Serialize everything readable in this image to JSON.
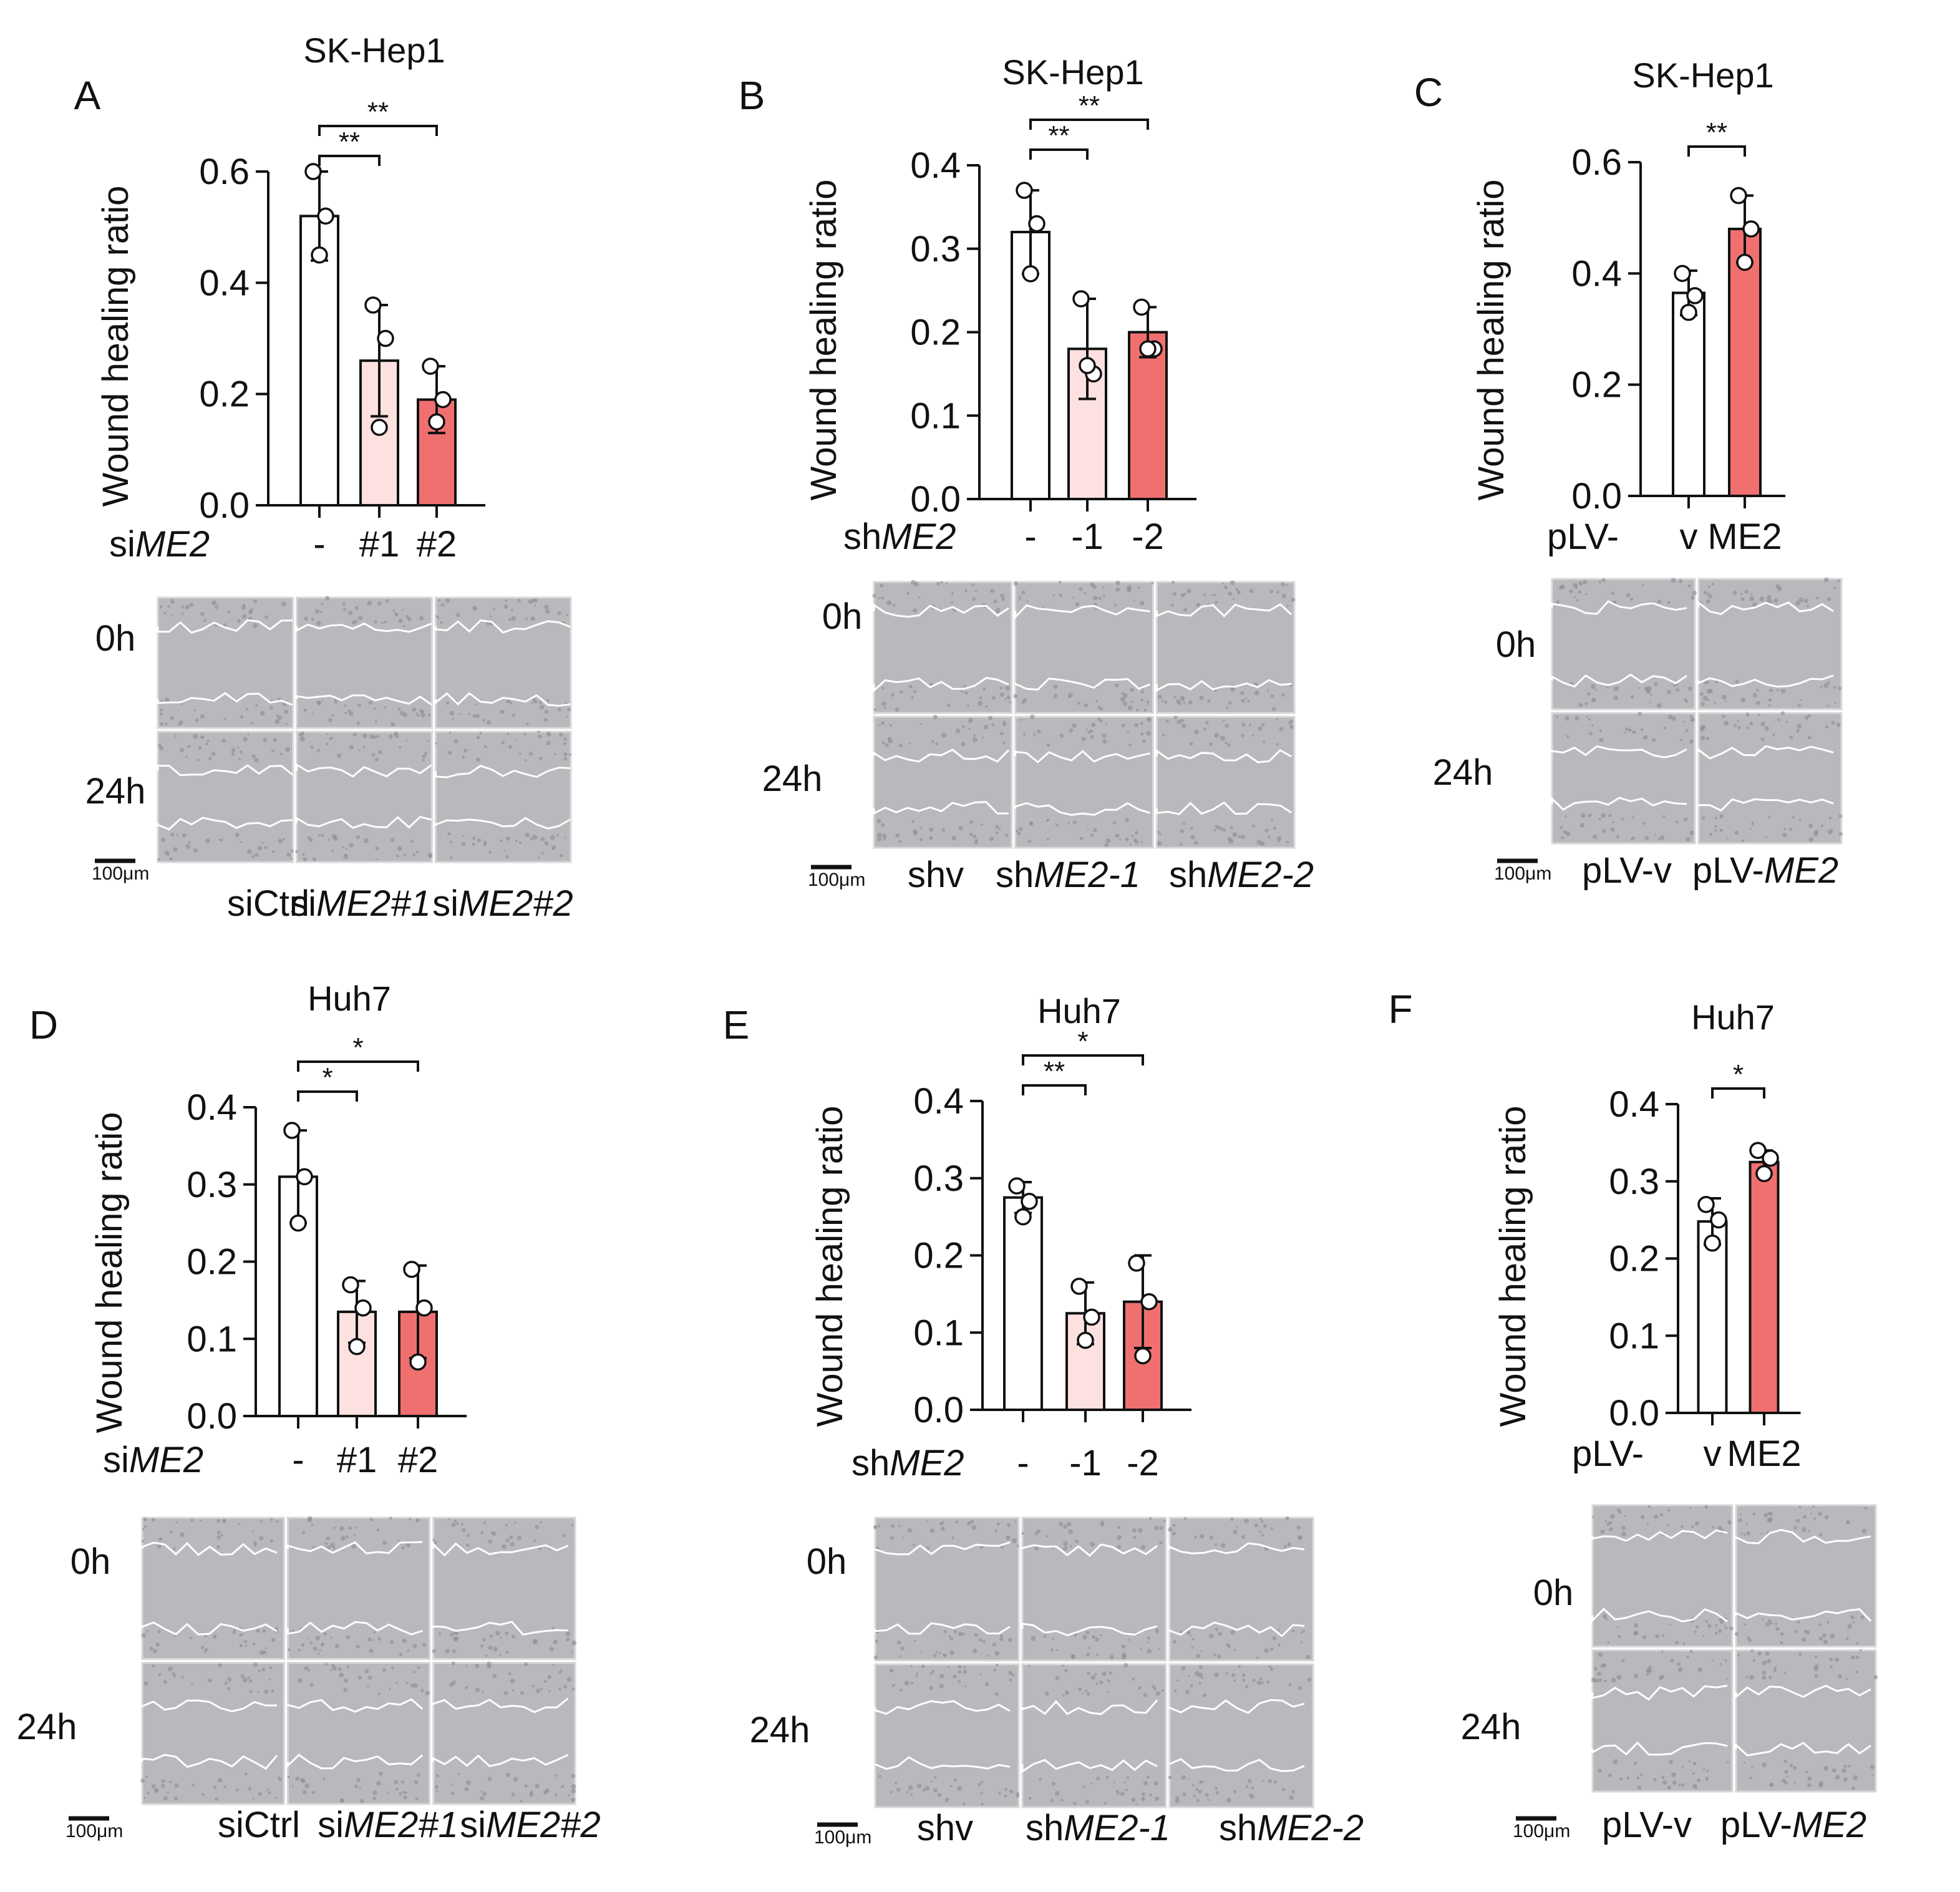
{
  "figure": {
    "colors": {
      "bar_ctrl": "#ffffff",
      "bar_light": "#fde0e0",
      "bar_dark": "#f07070",
      "bar_stroke": "#111111",
      "scratch_bg": "#b9b9bd",
      "scratch_line": "#ffffff"
    },
    "scale_bar_label": "100μm",
    "time_labels": [
      "0h",
      "24h"
    ]
  },
  "chart_data": [
    {
      "panel": "A",
      "type": "bar",
      "title": "SK-Hep1",
      "ylabel": "Wound healing ratio",
      "ylim": [
        0,
        0.6
      ],
      "yticks": [
        "0.0",
        "0.2",
        "0.4",
        "0.6"
      ],
      "group_prefix": "si",
      "group_gene": "ME2",
      "categories": [
        "-",
        "#1",
        "#2"
      ],
      "values": [
        0.52,
        0.26,
        0.19
      ],
      "errors": [
        0.08,
        0.1,
        0.06
      ],
      "points": [
        [
          0.6,
          0.52,
          0.45
        ],
        [
          0.36,
          0.3,
          0.14
        ],
        [
          0.25,
          0.19,
          0.15
        ]
      ],
      "fills": [
        "ctrl",
        "light",
        "dark"
      ],
      "significance": [
        {
          "from": 0,
          "to": 1,
          "label": "**"
        },
        {
          "from": 0,
          "to": 2,
          "label": "**"
        }
      ],
      "image_labels": [
        {
          "prefix": "siCtrl",
          "gene": "",
          "suffix": ""
        },
        {
          "prefix": "si",
          "gene": "ME2#1",
          "suffix": ""
        },
        {
          "prefix": "si",
          "gene": "ME2#2",
          "suffix": ""
        }
      ]
    },
    {
      "panel": "B",
      "type": "bar",
      "title": "SK-Hep1",
      "ylabel": "Wound healing ratio",
      "ylim": [
        0,
        0.4
      ],
      "yticks": [
        "0.0",
        "0.1",
        "0.2",
        "0.3",
        "0.4"
      ],
      "group_prefix": "sh",
      "group_gene": "ME2",
      "categories": [
        "-",
        "-1",
        "-2"
      ],
      "values": [
        0.32,
        0.18,
        0.2
      ],
      "errors": [
        0.05,
        0.06,
        0.03
      ],
      "points": [
        [
          0.37,
          0.33,
          0.27
        ],
        [
          0.24,
          0.15,
          0.16
        ],
        [
          0.23,
          0.18,
          0.18
        ]
      ],
      "fills": [
        "ctrl",
        "light",
        "dark"
      ],
      "significance": [
        {
          "from": 0,
          "to": 1,
          "label": "**"
        },
        {
          "from": 0,
          "to": 2,
          "label": "**"
        }
      ],
      "image_labels": [
        {
          "prefix": "shv",
          "gene": "",
          "suffix": ""
        },
        {
          "prefix": "sh",
          "gene": "ME2-1",
          "suffix": ""
        },
        {
          "prefix": "sh",
          "gene": "ME2-2",
          "suffix": ""
        }
      ]
    },
    {
      "panel": "C",
      "type": "bar",
      "title": "SK-Hep1",
      "ylabel": "Wound healing ratio",
      "ylim": [
        0,
        0.6
      ],
      "yticks": [
        "0.0",
        "0.2",
        "0.4",
        "0.6"
      ],
      "group_prefix": "pLV-",
      "group_gene": "",
      "categories": [
        "v",
        "ME2"
      ],
      "values": [
        0.365,
        0.48
      ],
      "errors": [
        0.04,
        0.06
      ],
      "points": [
        [
          0.4,
          0.36,
          0.33
        ],
        [
          0.54,
          0.48,
          0.42
        ]
      ],
      "fills": [
        "ctrl",
        "dark"
      ],
      "significance": [
        {
          "from": 0,
          "to": 1,
          "label": "**"
        }
      ],
      "image_labels": [
        {
          "prefix": "pLV-v",
          "gene": "",
          "suffix": ""
        },
        {
          "prefix": "pLV-",
          "gene": "ME2",
          "suffix": ""
        }
      ]
    },
    {
      "panel": "D",
      "type": "bar",
      "title": "Huh7",
      "ylabel": "Wound healing ratio",
      "ylim": [
        0,
        0.4
      ],
      "yticks": [
        "0.0",
        "0.1",
        "0.2",
        "0.3",
        "0.4"
      ],
      "group_prefix": "si",
      "group_gene": "ME2",
      "categories": [
        "-",
        "#1",
        "#2"
      ],
      "values": [
        0.31,
        0.135,
        0.135
      ],
      "errors": [
        0.06,
        0.04,
        0.06
      ],
      "points": [
        [
          0.37,
          0.31,
          0.25
        ],
        [
          0.17,
          0.14,
          0.09
        ],
        [
          0.19,
          0.14,
          0.07
        ]
      ],
      "fills": [
        "ctrl",
        "light",
        "dark"
      ],
      "significance": [
        {
          "from": 0,
          "to": 1,
          "label": "*"
        },
        {
          "from": 0,
          "to": 2,
          "label": "*"
        }
      ],
      "image_labels": [
        {
          "prefix": "siCtrl",
          "gene": "",
          "suffix": ""
        },
        {
          "prefix": "si",
          "gene": "ME2#1",
          "suffix": ""
        },
        {
          "prefix": "si",
          "gene": "ME2#2",
          "suffix": ""
        }
      ]
    },
    {
      "panel": "E",
      "type": "bar",
      "title": "Huh7",
      "ylabel": "Wound healing ratio",
      "ylim": [
        0,
        0.4
      ],
      "yticks": [
        "0.0",
        "0.1",
        "0.2",
        "0.3",
        "0.4"
      ],
      "group_prefix": "sh",
      "group_gene": "ME2",
      "categories": [
        "-",
        "-1",
        "-2"
      ],
      "values": [
        0.275,
        0.125,
        0.14
      ],
      "errors": [
        0.02,
        0.04,
        0.06
      ],
      "points": [
        [
          0.29,
          0.27,
          0.25
        ],
        [
          0.16,
          0.12,
          0.09
        ],
        [
          0.19,
          0.14,
          0.07
        ]
      ],
      "fills": [
        "ctrl",
        "light",
        "dark"
      ],
      "significance": [
        {
          "from": 0,
          "to": 1,
          "label": "**"
        },
        {
          "from": 0,
          "to": 2,
          "label": "*"
        }
      ],
      "image_labels": [
        {
          "prefix": "shv",
          "gene": "",
          "suffix": ""
        },
        {
          "prefix": "sh",
          "gene": "ME2-1",
          "suffix": ""
        },
        {
          "prefix": "sh",
          "gene": "ME2-2",
          "suffix": ""
        }
      ]
    },
    {
      "panel": "F",
      "type": "bar",
      "title": "Huh7",
      "ylabel": "Wound healing ratio",
      "ylim": [
        0,
        0.4
      ],
      "yticks": [
        "0.0",
        "0.1",
        "0.2",
        "0.3",
        "0.4"
      ],
      "group_prefix": "pLV-",
      "group_gene": "",
      "categories": [
        "v",
        "ME2"
      ],
      "values": [
        0.248,
        0.325
      ],
      "errors": [
        0.03,
        0.015
      ],
      "points": [
        [
          0.27,
          0.25,
          0.22
        ],
        [
          0.34,
          0.33,
          0.31
        ]
      ],
      "fills": [
        "ctrl",
        "dark"
      ],
      "significance": [
        {
          "from": 0,
          "to": 1,
          "label": "*"
        }
      ],
      "image_labels": [
        {
          "prefix": "pLV-v",
          "gene": "",
          "suffix": ""
        },
        {
          "prefix": "pLV-",
          "gene": "ME2",
          "suffix": ""
        }
      ]
    }
  ]
}
